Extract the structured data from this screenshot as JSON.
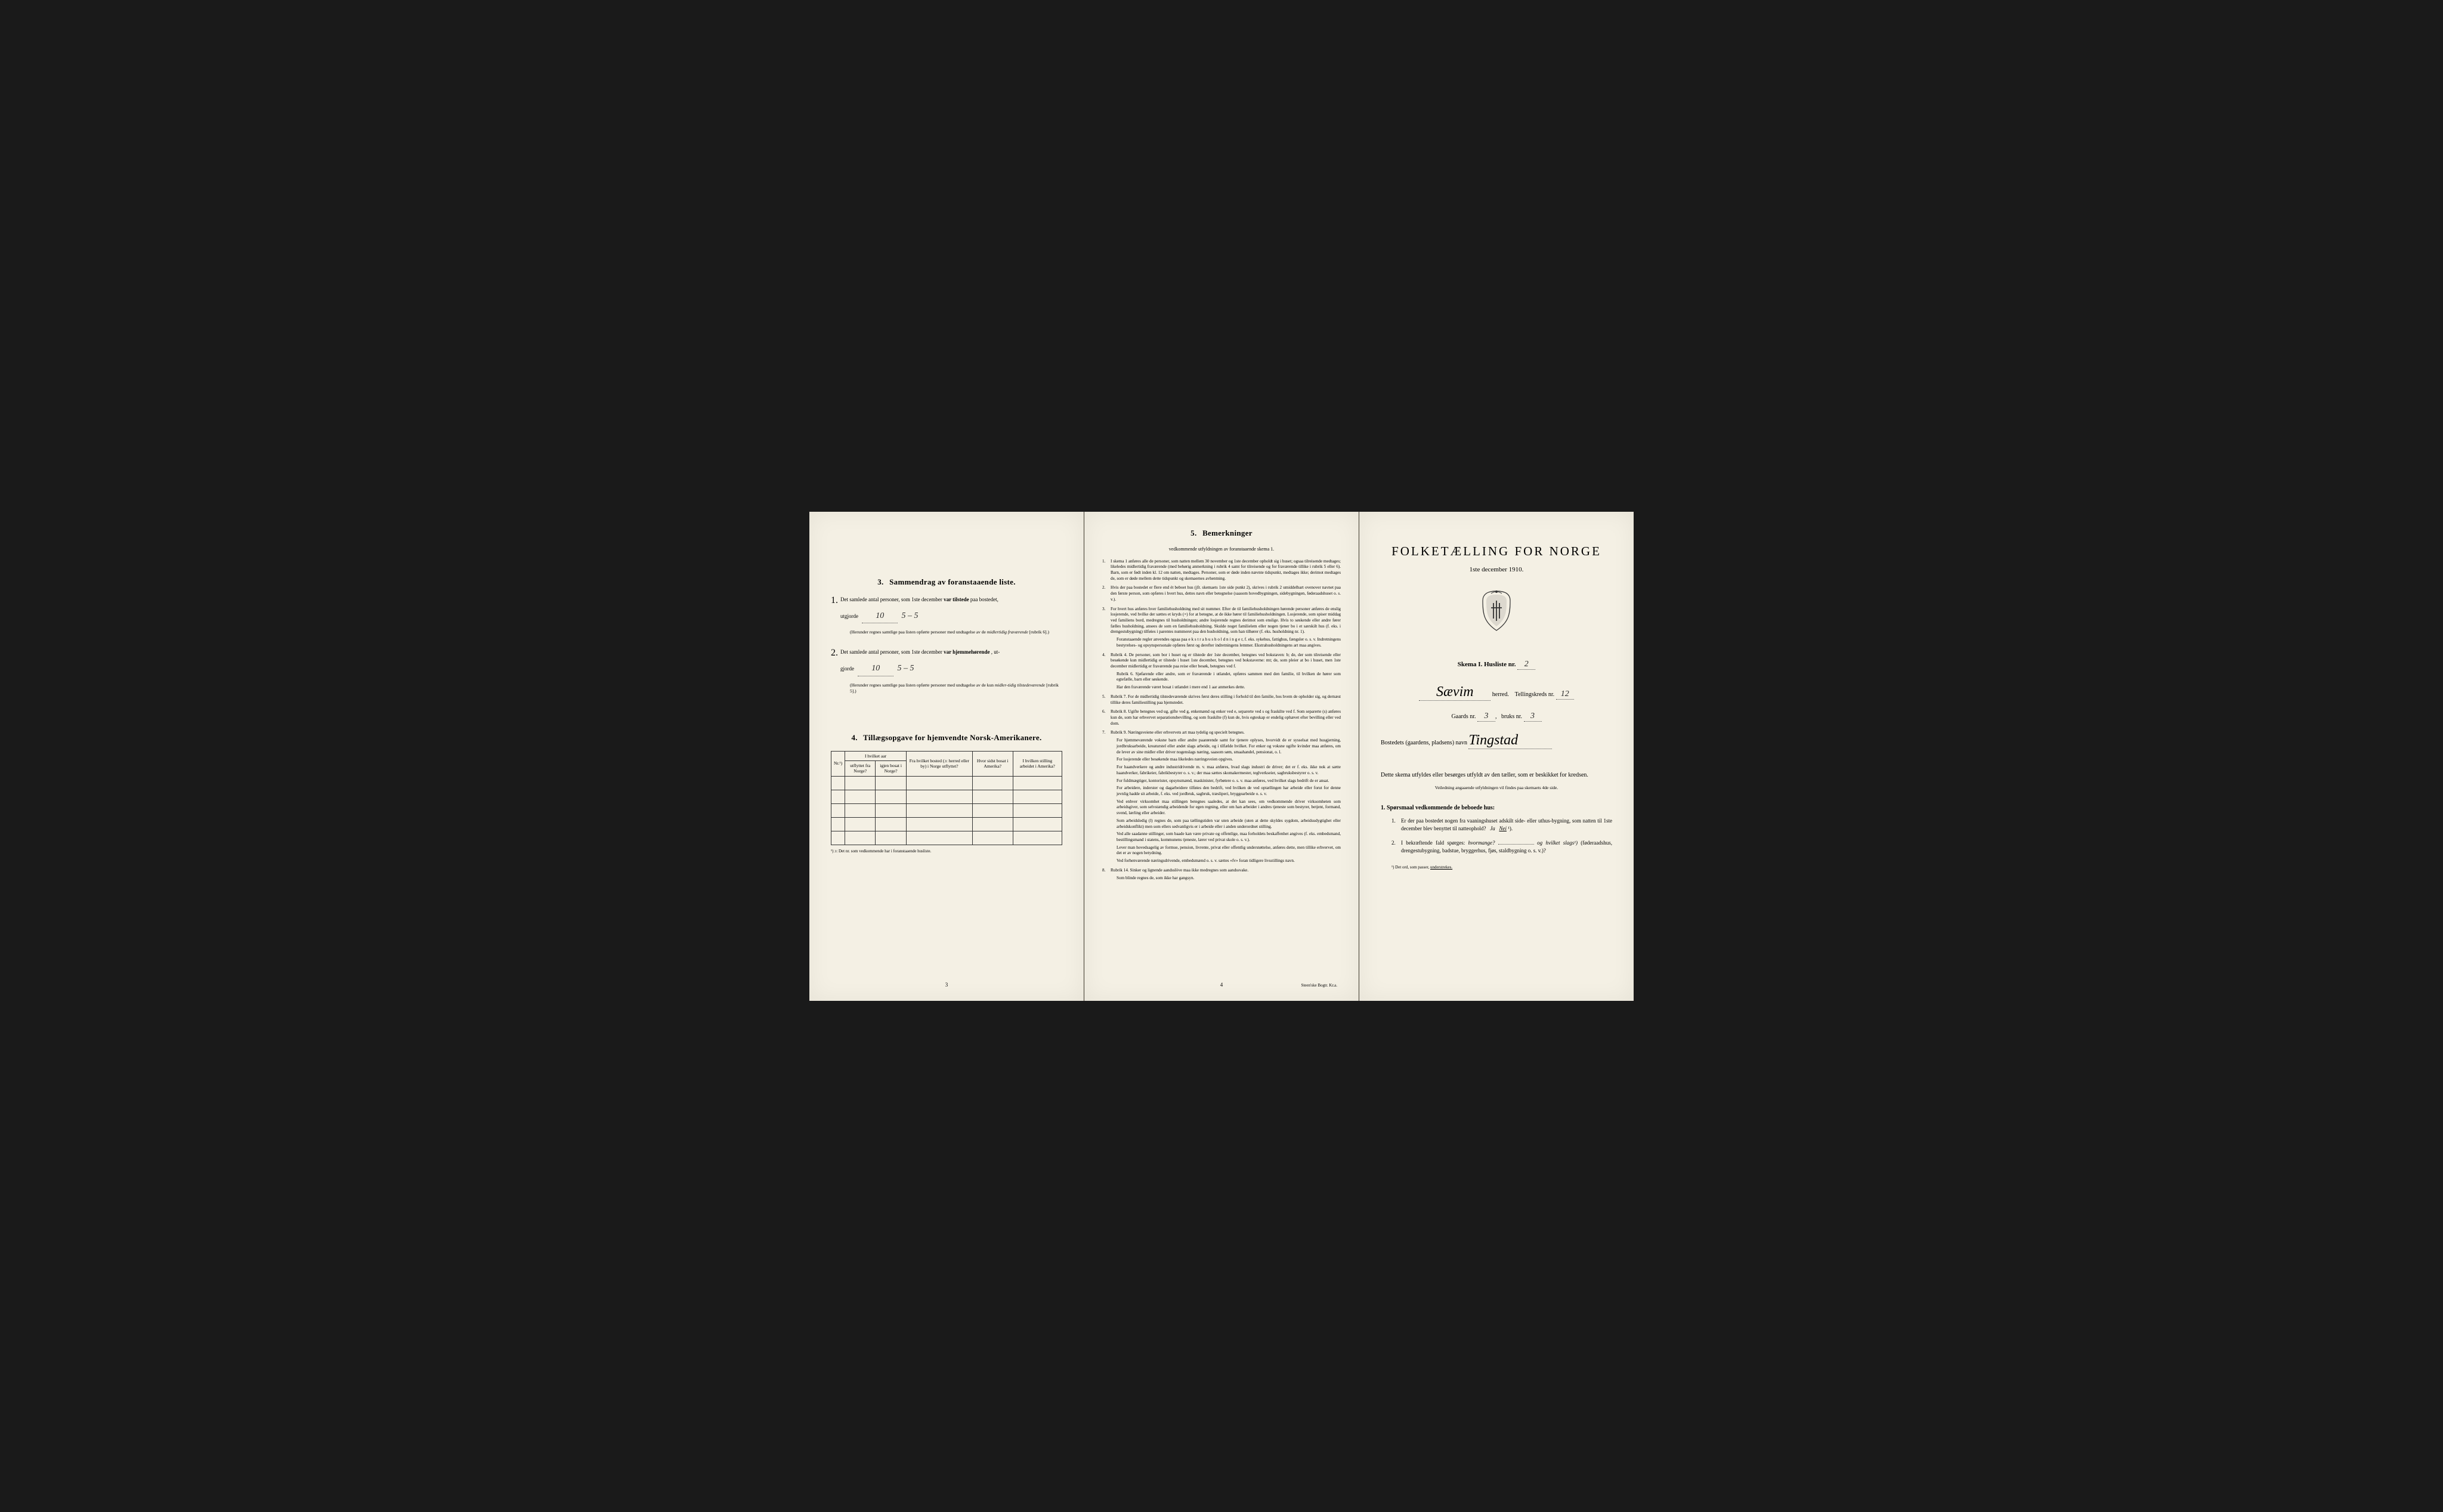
{
  "page1": {
    "section3": {
      "num": "3.",
      "title": "Sammendrag av foranstaaende liste.",
      "item1_pre": "Det samlede antal personer, som 1ste december",
      "item1_bold": "var tilstede",
      "item1_post": "paa bostedet,",
      "item1_line2a": "utgjorde",
      "item1_val": "10",
      "item1_val2": "5 – 5",
      "item1_note": "(Herunder regnes samtlige paa listen opførte personer med undtagelse av de",
      "item1_note_it": "midlertidig fraværende",
      "item1_note_end": "[rubrik 6].)",
      "item2_pre": "Det samlede antal personer, som 1ste december",
      "item2_bold": "var hjemmehørende",
      "item2_post": ", ut-",
      "item2_line2a": "gjorde",
      "item2_val": "10",
      "item2_val2": "5 – 5",
      "item2_note": "(Herunder regnes samtlige paa listen opførte personer med undtagelse av de kun",
      "item2_note_it": "midler-tidig tilstedeværende",
      "item2_note_end": "[rubrik 5].)"
    },
    "section4": {
      "num": "4.",
      "title": "Tillægsopgave for hjemvendte Norsk-Amerikanere.",
      "headers": {
        "nr": "Nr.¹)",
        "col1_top": "I hvilket aar",
        "col1a": "utflyttet fra Norge?",
        "col1b": "igjen bosat i Norge?",
        "col2": "Fra hvilket bosted (ɔ: herred eller by) i Norge utflyttet?",
        "col3": "Hvor sidst bosat i Amerika?",
        "col4": "I hvilken stilling arbeidet i Amerika?"
      },
      "footnote": "¹) ɔ: Det nr. som vedkommende har i foranstaaende husliste."
    },
    "page_num": "3"
  },
  "page2": {
    "section5": {
      "num": "5.",
      "title": "Bemerkninger",
      "subtitle": "vedkommende utfyldningen av foranstaaende skema 1.",
      "items": [
        {
          "n": "1.",
          "t": "I skema 1 anføres alle de personer, som natten mellem 30 november og 1ste december opholdt sig i huset; ogsaa tilreisende medtages; likeledes midlertidig fraværende (med behørig anmerkning i rubrik 4 samt for tilreisende og for fraværende tillike i rubrik 5 eller 6). Barn, som er født inden kl. 12 om natten, medtages. Personer, som er døde inden nævnte tidspunkt, medtages ikke; derimot medtages de, som er døde mellem dette tidspunkt og skemaernes avhentning."
        },
        {
          "n": "2.",
          "t": "Hvis der paa bostedet er flere end ét beboet hus (jfr. skemaets 1ste side punkt 2), skrives i rubrik 2 umiddelbart ovenover navnet paa den første person, som opføres i hvert hus, dettes navn eller betegnelse (saasom hovedbygningen, sidebygningen, føderaadshuset o. s. v.)."
        },
        {
          "n": "3.",
          "t": "For hvert hus anføres hver familiehusholdning med sit nummer. Efter de til familiehusholdningen hørende personer anføres de enslig losjerende, ved hvilke der sættes et kryds (×) for at betegne, at de ikke hører til familiehusholdningen. Losjerende, som spiser middag ved familiens bord, medregnes til husholdningen; andre losjerende regnes derimot som enslige. Hvis to søskende eller andre fører fælles husholdning, ansees de som en familiehusholdning. Skulde noget familielem eller nogen tjener bo i et særskilt hus (f. eks. i drengestu­bygning) tilføies i parentes nummeret paa den husholdning, som han tilhører (f. eks. husholdning nr. 1).",
          "paras": [
            "Foranstaaende regler anvendes ogsaa paa e k s t r a h u s h o l d n i n g e r, f. eks. syke­hus, fattighus, fængsler o. s. v. Indretningens bestyrelses- og opsynspersonale opføres først og derefter indretningens lemmer. Ekstrahusholdningens art maa angives."
          ]
        },
        {
          "n": "4.",
          "t": "Rubrik 4. De personer, som bor i huset og er tilstede der 1ste december, betegnes ved bokstaven: b; de, der som tilreisende eller besøkende kun midlertidig er tilstede i huset 1ste december, betegnes ved bokstaverne: mt; de, som pleier at bo i huset, men 1ste december midlertidig er fraværende paa reise eller besøk, betegnes ved f.",
          "paras": [
            "Rubrik 6. Sjøfarende eller andre, som er fraværende i utlandet, opføres sammen med den familie, til hvilken de hører som egtefælle, barn eller søskende.",
            "Har den fraværende været bosat i utlandet i mere end 1 aar anmerkes dette."
          ]
        },
        {
          "n": "5.",
          "t": "Rubrik 7. For de midlertidig tilstedeværende skrives først deres stilling i forhold til den familie, hos hvem de opholder sig, og dernæst tillike deres familiestilling paa hjemstedet."
        },
        {
          "n": "6.",
          "t": "Rubrik 8. Ugifte betegnes ved ug, gifte ved g, enkemænd og enker ved e, separerte ved s og fraskilte ved f. Som separerte (s) anføres kun de, som har erhvervet separations­bevilling, og som fraskilte (f) kun de, hvis egteskap er endelig ophævet efter bevilling eller ved dom."
        },
        {
          "n": "7.",
          "t": "Rubrik 9. Næringsveiene eller erhvervets art maa tydelig og specielt betegnes.",
          "paras": [
            "For hjemmeværende voksne barn eller andre paarørende samt for tjenere oplyses, hvor­vidt de er sysselsat med husgjerning, jordbruksarbeide, kreaturstel eller andet slags arbeide, og i tilfælde hvilket. For enker og voksne ugifte kvinder maa anføres, om de lever av sine midler eller driver nogenslags næring, saasom søm, smaahandel, pensionat, o. l.",
            "For losjerende eller besøkende maa likeledes næringsveien opgives.",
            "For haandverkere og andre industridrivende m. v. maa anføres, hvad slags industri de driver; det er f. eks. ikke nok at sætte haandverker, fabrikeier, fabrikbestyrer o. s. v.; der maa sættes skomakermester, teglverkseier, sagbruksbestyrer o. s. v.",
            "For fuldmægtiger, kontorister, opsynsmænd, maskinister, fyrbøtere o. s. v. maa anføres, ved hvilket slags bedrift de er ansat.",
            "For arbeidere, inderster og dagarbeidere tilføies den bedrift, ved hvilken de ved op­tællingen har arbeide eller forut for denne jevnlig hadde sit arbeide, f. eks. ved jordbruk, sagbruk, træsliperi, bryggearbeide o. s. v.",
            "Ved enhver virksomhet maa stillingen betegnes saaledes, at det kan sees, om ved­kommende driver virksomheten som arbeidsgiver, som selvstændig arbeidende for egen regning, eller om han arbeider i andres tjeneste som bestyrer, betjent, formand, svend, lærling eller arbeider.",
            "Som arbeidsledig (l) regnes de, som paa tællingstiden var uten arbeide (uten at dette skyldes sygdom, arbeidsudygtighet eller arbeidskonflikt) men som ellers sedvanligvis er i arbeide eller i anden underordnet stilling.",
            "Ved alle saadanne stillinger, som baade kan være private og offentlige, maa for­holdets beskaffenhet angives (f. eks. embedsmand, bestillingsmand i statens, kommunens tjeneste, lærer ved privat skole o. s. v.).",
            "Lever man hovedsagelig av formue, pension, livrente, privat eller offentlig under­støttelse, anføres dette, men tillike erhvervet, om det er av nogen betydning.",
            "Ved forhenværende næringsdrivende, embedsmænd o. s. v. sættes «fv» foran tidligere livsstillings navn."
          ]
        },
        {
          "n": "8.",
          "t": "Rubrik 14. Sinker og lignende aandsslöve maa ikke medregnes som aandssvake.",
          "paras": [
            "Som blinde regnes de, som ikke har gangsyn."
          ]
        }
      ]
    },
    "page_num": "4",
    "imprint": "Steen'ske Bogtr. Kr.a."
  },
  "page3": {
    "main_title": "FOLKETÆLLING FOR NORGE",
    "date": "1ste december 1910.",
    "skema_label": "Skema I.  Husliste nr.",
    "husliste_nr": "2",
    "herred_name": "Sævim",
    "herred_label": "herred.",
    "tellingskreds_label": "Tellingskreds nr.",
    "tellingskreds_nr": "12",
    "gaards_label": "Gaards nr.",
    "gaards_nr": "3",
    "bruks_label": "bruks nr.",
    "bruks_nr": "3",
    "bosted_label": "Bostedets (gaardens, pladsens) navn",
    "bosted_name": "Tingstad",
    "instruct1": "Dette skema utfyldes eller besørges utfyldt av den tæller, som er beskikket for kredsen.",
    "instruct2": "Veiledning angaaende utfyldningen vil findes paa skemaets 4de side.",
    "q_head_num": "1.",
    "q_head": "Spørsmaal vedkommende de beboede hus:",
    "q1_n": "1.",
    "q1": "Er der paa bostedet nogen fra vaaningshuset adskilt side- eller uthus-bygning, som natten til 1ste december blev benyttet til natteophold?",
    "q1_ja": "Ja",
    "q1_nei": "Nei",
    "q1_sup": "¹).",
    "q2_n": "2.",
    "q2a": "I bekræftende fald spørges:",
    "q2b": "hvormange?",
    "q2c": "og hvilket slags¹)",
    "q2d": "(føderaadshus, drengestubygning, badstue, bryggerhus, fjøs, stald­bygning o. s. v.)?",
    "foot": "¹) Det ord, som passer,",
    "foot_u": "understrekes."
  }
}
